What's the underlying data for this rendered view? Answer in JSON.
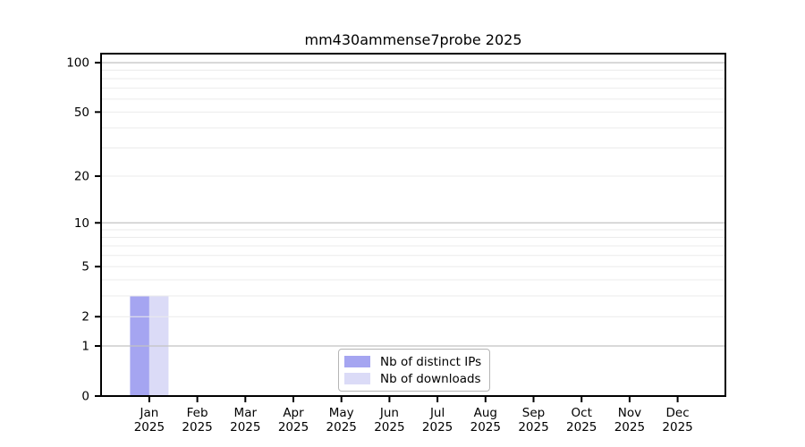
{
  "chart_data": {
    "type": "bar",
    "title": "mm430ammense7probe 2025",
    "months": [
      "Jan",
      "Feb",
      "Mar",
      "Apr",
      "May",
      "Jun",
      "Jul",
      "Aug",
      "Sep",
      "Oct",
      "Nov",
      "Dec"
    ],
    "year": "2025",
    "series": [
      {
        "name": "Nb of distinct IPs",
        "color": "#a5a5f1",
        "values": [
          3,
          0,
          0,
          0,
          0,
          0,
          0,
          0,
          0,
          0,
          0,
          0
        ]
      },
      {
        "name": "Nb of downloads",
        "color": "#dbdbf7",
        "values": [
          3,
          0,
          0,
          0,
          0,
          0,
          0,
          0,
          0,
          0,
          0,
          0
        ]
      }
    ],
    "yscale": "log1p",
    "ylim": [
      0,
      113.5
    ],
    "yticks": [
      100,
      50,
      20,
      10,
      5,
      2,
      1,
      0
    ],
    "major_gridlines": [
      1,
      10,
      100
    ],
    "minor_gridlines": [
      2,
      3,
      4,
      5,
      6,
      7,
      8,
      9,
      20,
      30,
      40,
      50,
      60,
      70,
      80,
      90
    ],
    "grid": true,
    "legend_position": "bottom-center",
    "colors": {
      "axis": "#000000",
      "text": "#000000",
      "major_grid": "#c2c2c2",
      "minor_grid": "#ebebeb",
      "legend_border": "#b5b5b5",
      "legend_bg": "#ffffff",
      "background": "#ffffff"
    }
  }
}
